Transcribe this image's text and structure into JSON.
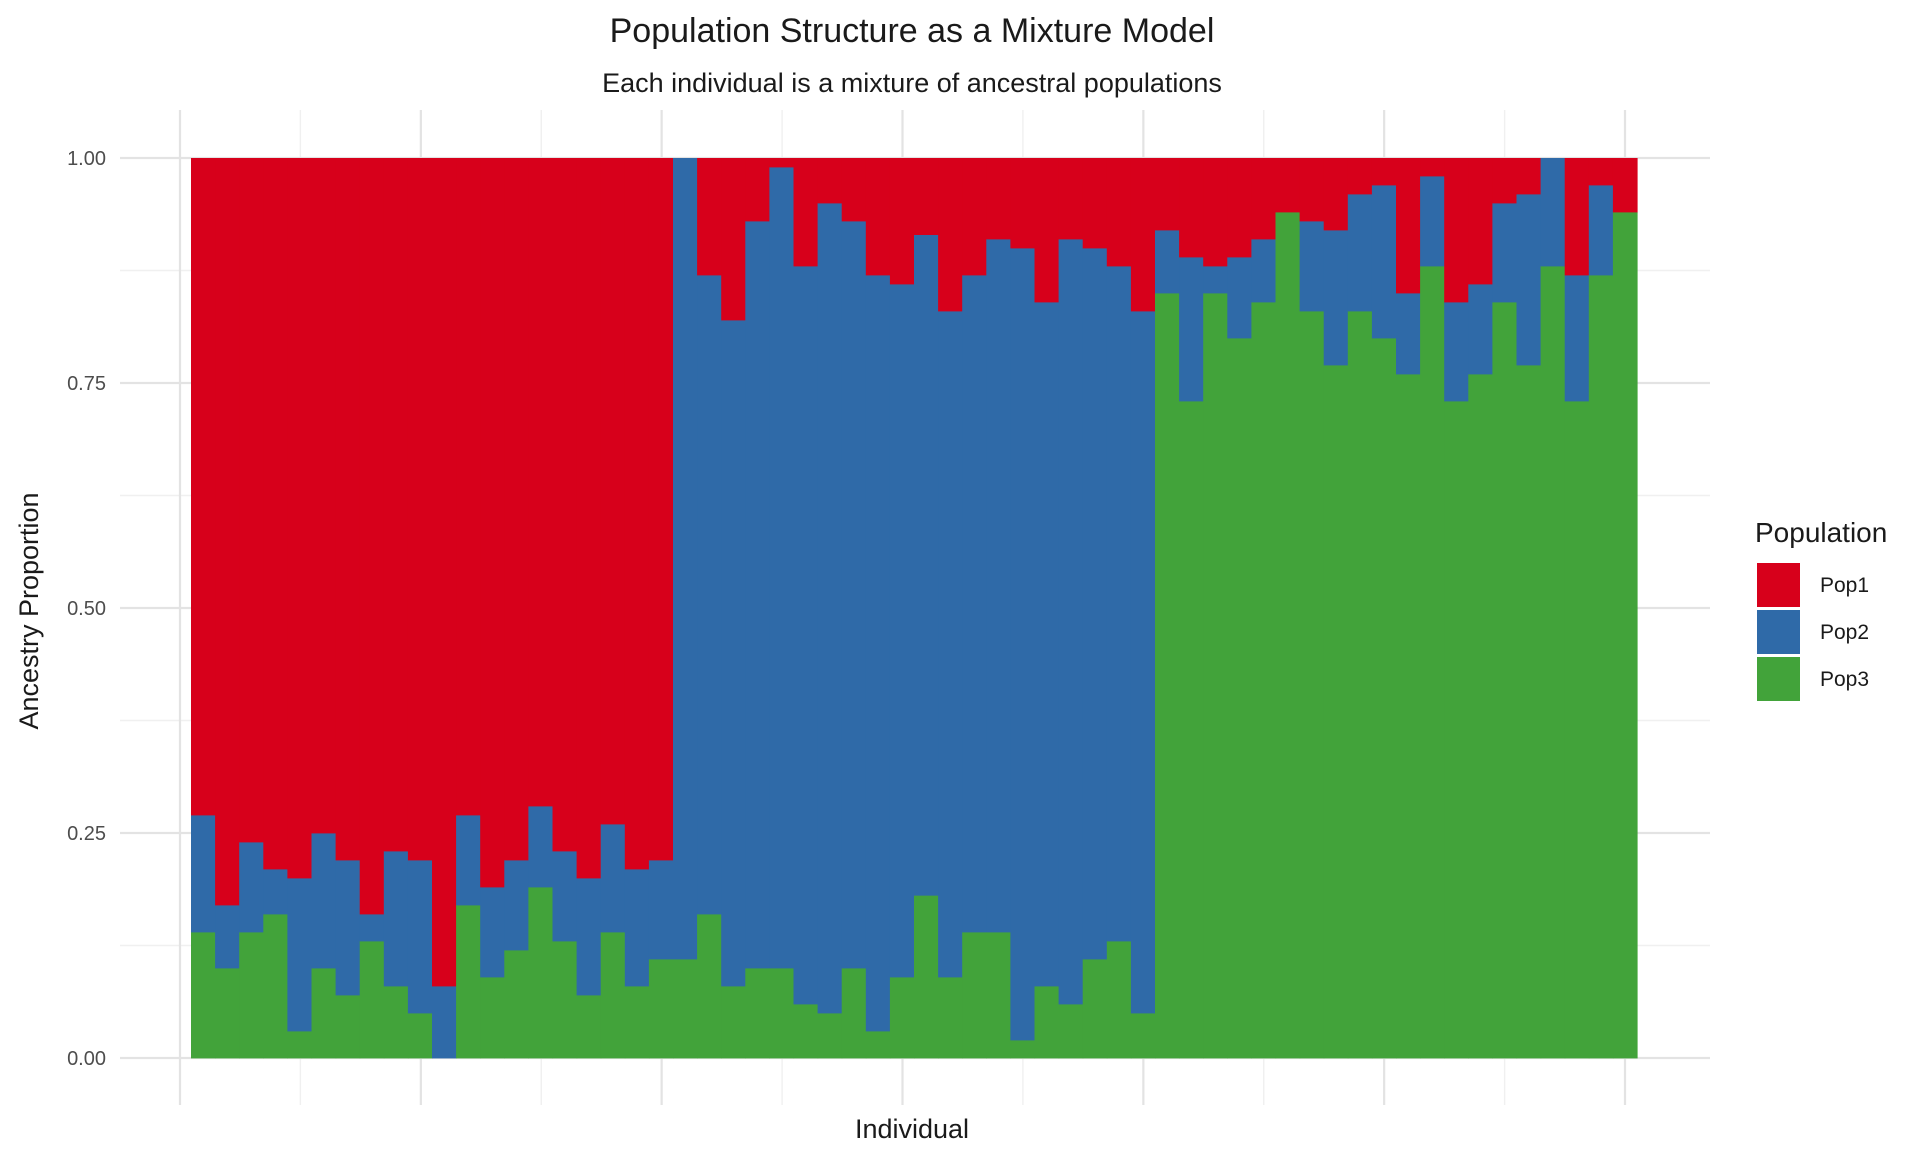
{
  "chart_data": {
    "type": "bar",
    "stacked": true,
    "title": "Population Structure as a Mixture Model",
    "subtitle": "Each individual is a mixture of ancestral populations",
    "xlabel": "Individual",
    "ylabel": "Ancestry Proportion",
    "ylim": [
      0,
      1
    ],
    "y_ticks": [
      "0.00",
      "0.25",
      "0.50",
      "0.75",
      "1.00"
    ],
    "x_tick_labels_shown": false,
    "grid": true,
    "legend": {
      "title": "Population",
      "position": "right"
    },
    "colors": {
      "Pop1": "#d7001b",
      "Pop2": "#2f6aa8",
      "Pop3": "#42a33a"
    },
    "individuals": 60,
    "series": [
      {
        "name": "Pop3",
        "values": [
          0.14,
          0.1,
          0.14,
          0.16,
          0.03,
          0.1,
          0.07,
          0.13,
          0.08,
          0.05,
          0.0,
          0.17,
          0.09,
          0.12,
          0.19,
          0.13,
          0.07,
          0.14,
          0.08,
          0.11,
          0.11,
          0.16,
          0.08,
          0.1,
          0.1,
          0.06,
          0.05,
          0.1,
          0.03,
          0.09,
          0.17,
          0.09,
          0.14,
          0.14,
          0.02,
          0.08,
          0.06,
          0.11,
          0.13,
          0.05,
          0.85,
          0.73,
          0.85,
          0.8,
          0.84,
          0.94,
          0.83,
          0.77,
          0.83,
          0.8,
          0.76,
          0.88,
          0.73,
          0.76,
          0.84,
          0.77,
          0.88,
          0.73,
          0.87,
          0.94
        ]
      },
      {
        "name": "Pop2",
        "values": [
          0.13,
          0.07,
          0.1,
          0.05,
          0.17,
          0.15,
          0.15,
          0.03,
          0.15,
          0.17,
          0.08,
          0.1,
          0.1,
          0.1,
          0.09,
          0.1,
          0.13,
          0.12,
          0.13,
          0.11,
          0.89,
          0.71,
          0.74,
          0.83,
          0.89,
          0.82,
          0.9,
          0.83,
          0.84,
          0.77,
          0.69,
          0.74,
          0.73,
          0.77,
          0.88,
          0.76,
          0.85,
          0.79,
          0.75,
          0.78,
          0.07,
          0.16,
          0.03,
          0.09,
          0.07,
          0.0,
          0.1,
          0.15,
          0.13,
          0.17,
          0.09,
          0.1,
          0.11,
          0.1,
          0.11,
          0.19,
          0.12,
          0.14,
          0.1,
          0.0
        ]
      },
      {
        "name": "Pop1",
        "values": [
          0.73,
          0.83,
          0.76,
          0.79,
          0.8,
          0.75,
          0.78,
          0.84,
          0.77,
          0.78,
          0.92,
          0.73,
          0.81,
          0.78,
          0.72,
          0.77,
          0.8,
          0.74,
          0.79,
          0.78,
          0.0,
          0.13,
          0.18,
          0.07,
          0.01,
          0.12,
          0.05,
          0.07,
          0.13,
          0.14,
          0.08,
          0.17,
          0.13,
          0.09,
          0.1,
          0.16,
          0.09,
          0.1,
          0.12,
          0.17,
          0.08,
          0.11,
          0.12,
          0.11,
          0.09,
          0.06,
          0.07,
          0.08,
          0.04,
          0.03,
          0.15,
          0.02,
          0.16,
          0.14,
          0.05,
          0.04,
          0.0,
          0.13,
          0.03,
          0.06
        ]
      }
    ]
  }
}
